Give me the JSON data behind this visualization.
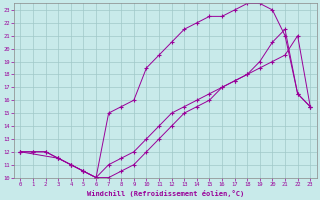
{
  "xlabel": "Windchill (Refroidissement éolien,°C)",
  "bg_color": "#c8eaea",
  "line_color": "#990099",
  "grid_color": "#a0c8c8",
  "xlim": [
    -0.5,
    23.5
  ],
  "ylim": [
    10,
    23.5
  ],
  "xticks": [
    0,
    1,
    2,
    3,
    4,
    5,
    6,
    7,
    8,
    9,
    10,
    11,
    12,
    13,
    14,
    15,
    16,
    17,
    18,
    19,
    20,
    21,
    22,
    23
  ],
  "yticks": [
    10,
    11,
    12,
    13,
    14,
    15,
    16,
    17,
    18,
    19,
    20,
    21,
    22,
    23
  ],
  "line1_x": [
    0,
    1,
    2,
    3,
    4,
    5,
    6,
    7,
    8,
    9,
    10,
    11,
    12,
    13,
    14,
    15,
    16,
    17,
    18,
    19,
    20,
    21,
    22,
    23
  ],
  "line1_y": [
    12,
    12,
    12,
    11.5,
    11,
    10.5,
    10,
    10,
    10.5,
    11,
    12,
    13,
    14,
    15,
    15.5,
    16,
    17,
    17.5,
    18,
    18.5,
    19,
    19.5,
    21,
    15.5
  ],
  "line2_x": [
    0,
    1,
    2,
    3,
    4,
    5,
    6,
    7,
    8,
    9,
    10,
    11,
    12,
    13,
    14,
    15,
    16,
    17,
    18,
    19,
    20,
    21,
    22,
    23
  ],
  "line2_y": [
    12,
    12,
    12,
    11.5,
    11,
    10.5,
    10,
    15,
    15.5,
    16,
    18.5,
    19.5,
    20.5,
    21.5,
    22,
    22.5,
    22.5,
    23,
    23.5,
    23.5,
    23,
    21,
    16.5,
    15.5
  ],
  "line3_x": [
    0,
    3,
    4,
    5,
    6,
    7,
    8,
    9,
    10,
    11,
    12,
    13,
    14,
    15,
    16,
    17,
    18,
    19,
    20,
    21,
    22,
    23
  ],
  "line3_y": [
    12,
    11.5,
    11,
    10.5,
    10,
    11,
    11.5,
    12,
    13,
    14,
    15,
    15.5,
    16,
    16.5,
    17,
    17.5,
    18,
    19,
    20.5,
    21.5,
    16.5,
    15.5
  ]
}
